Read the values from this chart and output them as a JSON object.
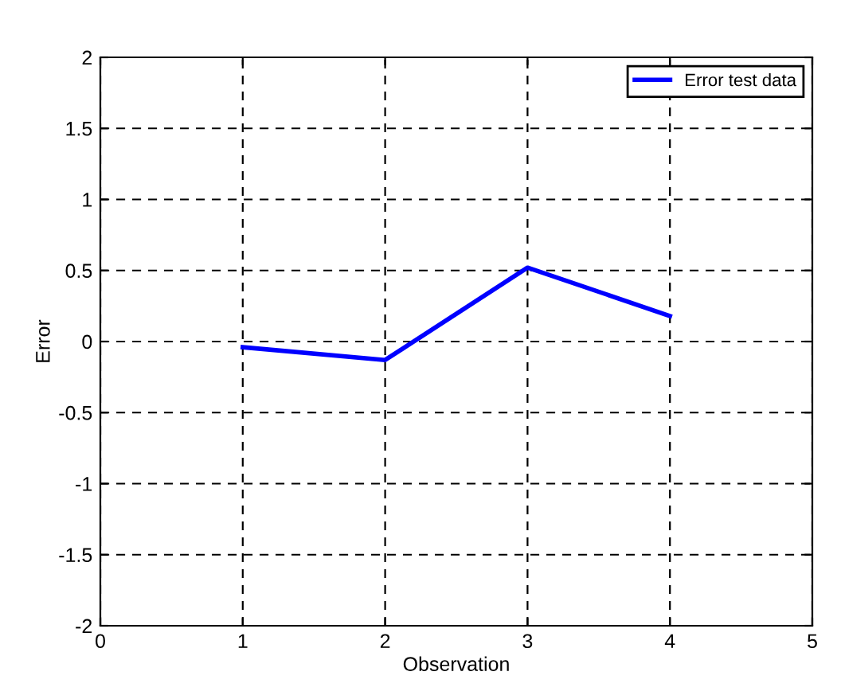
{
  "chart_data": {
    "type": "line",
    "xlabel": "Observation",
    "ylabel": "Error",
    "x": [
      1,
      2,
      3,
      4
    ],
    "series": [
      {
        "name": "Error test data",
        "color": "#0000ff",
        "values": [
          -0.04,
          -0.13,
          0.52,
          0.18
        ]
      }
    ],
    "xlim": [
      0,
      5
    ],
    "xticks": [
      0,
      1,
      2,
      3,
      4,
      5
    ],
    "ylim": [
      -2,
      2
    ],
    "yticks": [
      -2,
      -1.5,
      -1,
      -0.5,
      0,
      0.5,
      1,
      1.5,
      2
    ],
    "grid": true,
    "legend": "top right",
    "marker": "none",
    "line_style": "solid"
  }
}
